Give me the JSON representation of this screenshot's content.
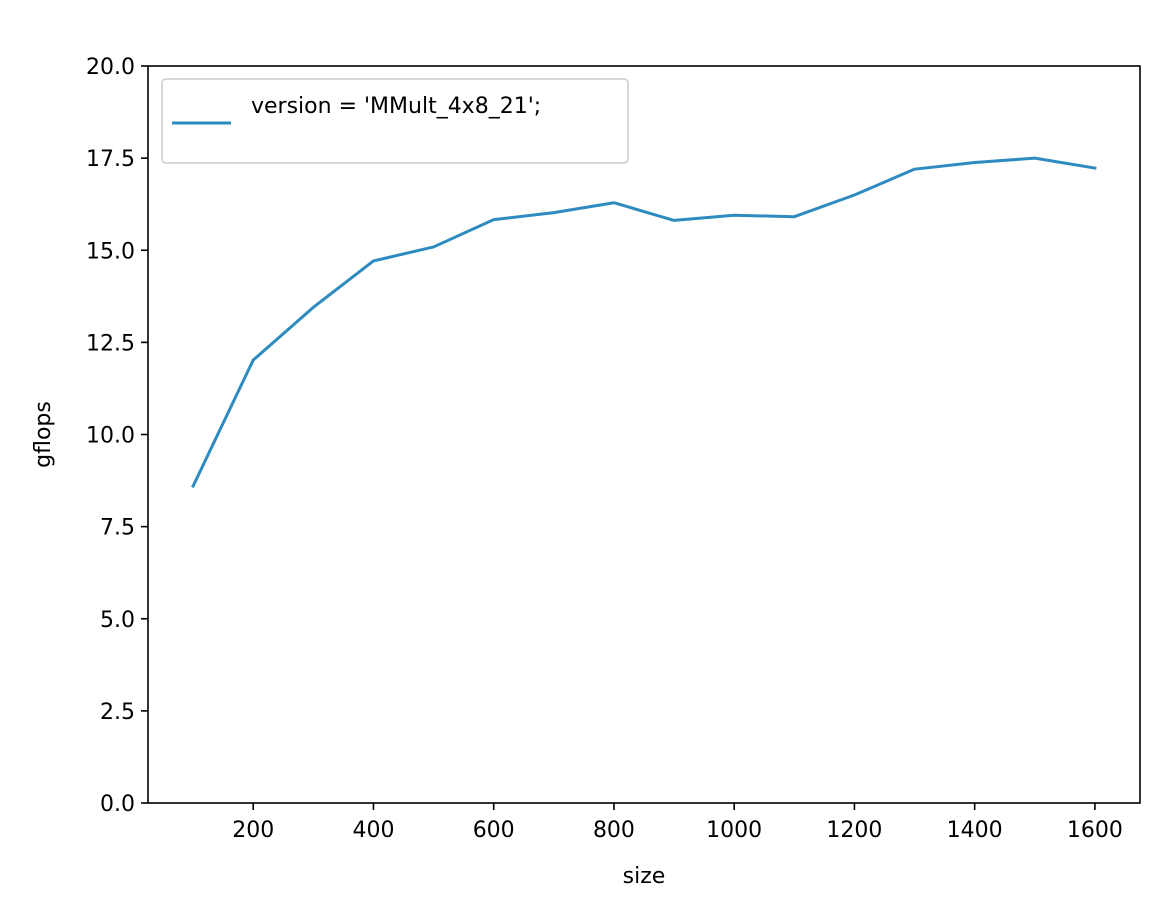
{
  "chart_data": {
    "type": "line",
    "title": "",
    "xlabel": "size",
    "ylabel": "gflops",
    "xlim": [
      25,
      1675
    ],
    "ylim": [
      0,
      20
    ],
    "xticks": [
      200,
      400,
      600,
      800,
      1000,
      1200,
      1400,
      1600
    ],
    "yticks": [
      0.0,
      2.5,
      5.0,
      7.5,
      10.0,
      12.5,
      15.0,
      17.5,
      20.0
    ],
    "grid": false,
    "legend_position": "upper-left",
    "series": [
      {
        "name": "version = 'MMult_4x8_21';",
        "color": "#2e8bc0",
        "x": [
          100,
          200,
          300,
          400,
          500,
          600,
          700,
          800,
          900,
          1000,
          1100,
          1200,
          1300,
          1400,
          1500,
          1600
        ],
        "y": [
          8.6,
          12.02,
          13.45,
          14.71,
          15.09,
          15.83,
          16.02,
          16.29,
          15.81,
          15.95,
          15.91,
          16.5,
          17.2,
          17.38,
          17.5,
          17.23
        ]
      }
    ]
  }
}
